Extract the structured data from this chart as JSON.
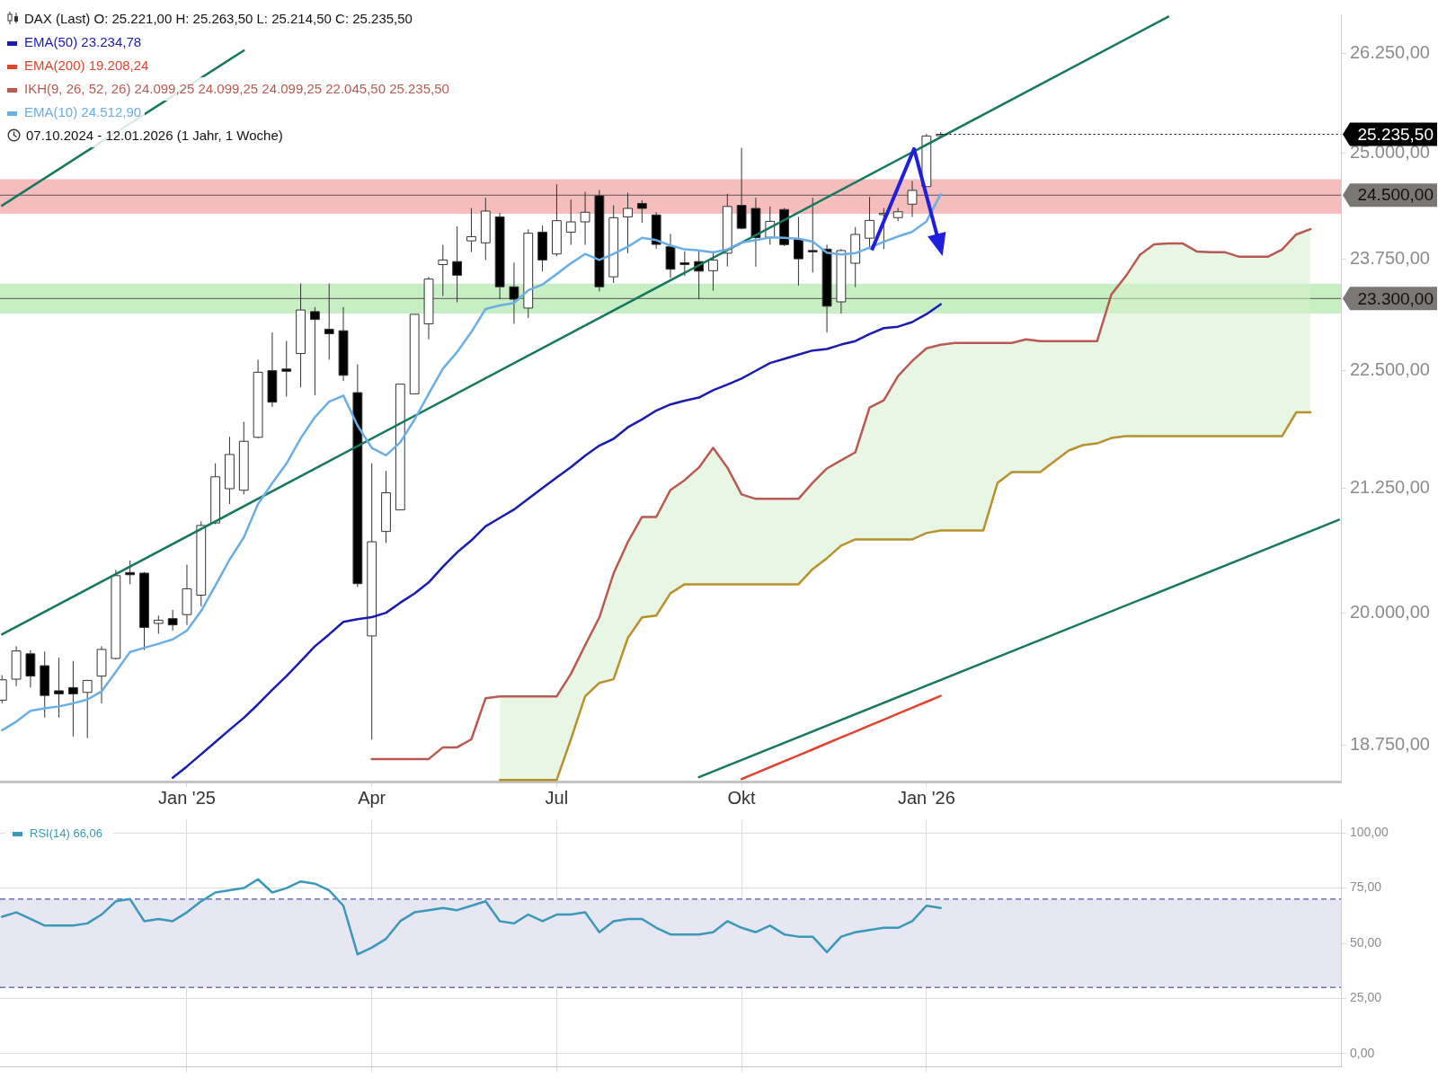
{
  "chart_data": [
    {
      "type": "candlestick",
      "title": "DAX (Last)  O: 25.221,00  H: 25.263,50  L: 25.214,50  C: 25.235,50",
      "subtitle": "07.10.2024 - 12.01.2026  (1 Jahr, 1 Woche)",
      "legend": "top left",
      "log": true,
      "x": [
        "2024-10-07",
        "2024-10-14",
        "2024-10-21",
        "2024-10-28",
        "2024-11-04",
        "2024-11-11",
        "2024-11-18",
        "2024-11-25",
        "2024-12-02",
        "2024-12-09",
        "2024-12-16",
        "2024-12-23",
        "2024-12-30",
        "2025-01-06",
        "2025-01-13",
        "2025-01-20",
        "2025-01-27",
        "2025-02-03",
        "2025-02-10",
        "2025-02-17",
        "2025-02-24",
        "2025-03-03",
        "2025-03-10",
        "2025-03-17",
        "2025-03-24",
        "2025-03-31",
        "2025-04-07",
        "2025-04-14",
        "2025-04-21",
        "2025-04-28",
        "2025-05-05",
        "2025-05-12",
        "2025-05-19",
        "2025-05-26",
        "2025-06-02",
        "2025-06-09",
        "2025-06-16",
        "2025-06-23",
        "2025-06-30",
        "2025-07-07",
        "2025-07-14",
        "2025-07-21",
        "2025-07-28",
        "2025-08-04",
        "2025-08-11",
        "2025-08-18",
        "2025-08-25",
        "2025-09-01",
        "2025-09-08",
        "2025-09-15",
        "2025-09-22",
        "2025-09-29",
        "2025-10-06",
        "2025-10-13",
        "2025-10-20",
        "2025-10-27",
        "2025-11-03",
        "2025-11-10",
        "2025-11-17",
        "2025-11-24",
        "2025-12-01",
        "2025-12-08",
        "2025-12-15",
        "2025-12-22",
        "2025-12-29",
        "2026-01-05",
        "2026-01-12"
      ],
      "ohlc": [
        [
          19168,
          19403,
          19139,
          19359
        ],
        [
          19365,
          19677,
          19300,
          19632
        ],
        [
          19605,
          19641,
          19286,
          19394
        ],
        [
          19492,
          19627,
          19007,
          19212
        ],
        [
          19256,
          19567,
          19007,
          19227
        ],
        [
          19286,
          19537,
          18833,
          19227
        ],
        [
          19241,
          19359,
          18818,
          19353
        ],
        [
          19394,
          19677,
          19139,
          19647
        ],
        [
          19561,
          20422,
          19551,
          20364
        ],
        [
          20395,
          20514,
          20280,
          20373
        ],
        [
          20389,
          20400,
          19641,
          19858
        ],
        [
          19897,
          19973,
          19797,
          19928
        ],
        [
          19943,
          20028,
          19827,
          19882
        ],
        [
          19982,
          20473,
          19882,
          20234
        ],
        [
          20172,
          20909,
          20064,
          20867
        ],
        [
          20893,
          21507,
          20880,
          21366
        ],
        [
          21243,
          21786,
          21085,
          21599
        ],
        [
          21227,
          21945,
          21184,
          21738
        ],
        [
          21780,
          22617,
          21770,
          22480
        ],
        [
          22497,
          22920,
          22104,
          22155
        ],
        [
          22515,
          22826,
          22216,
          22490
        ],
        [
          22686,
          23471,
          22316,
          23170
        ],
        [
          23152,
          23202,
          22230,
          23064
        ],
        [
          22955,
          23471,
          22617,
          22904
        ],
        [
          22938,
          23202,
          22384,
          22446
        ],
        [
          22258,
          22566,
          20254,
          20285
        ],
        [
          19776,
          21507,
          18804,
          20702
        ],
        [
          20806,
          21427,
          20690,
          21201
        ],
        [
          21025,
          22350,
          21025,
          22350
        ],
        [
          22245,
          23122,
          22245,
          23122
        ],
        [
          23015,
          23547,
          22842,
          23521
        ],
        [
          23687,
          23916,
          23327,
          23740
        ],
        [
          23722,
          24131,
          23257,
          23565
        ],
        [
          23962,
          24347,
          23832,
          24011
        ],
        [
          23939,
          24470,
          23740,
          24311
        ],
        [
          24243,
          24288,
          23292,
          23433
        ],
        [
          23433,
          23709,
          23015,
          23292
        ],
        [
          23192,
          24096,
          23080,
          24051
        ],
        [
          24064,
          24140,
          23608,
          23740
        ],
        [
          23810,
          24630,
          23784,
          24198
        ],
        [
          24064,
          24448,
          23916,
          24184
        ],
        [
          24184,
          24539,
          23916,
          24297
        ],
        [
          24493,
          24562,
          23380,
          23433
        ],
        [
          23547,
          24379,
          23477,
          24233
        ],
        [
          24243,
          24530,
          23819,
          24343
        ],
        [
          24402,
          24439,
          24175,
          24343
        ],
        [
          24266,
          24298,
          23872,
          23921
        ],
        [
          23894,
          24042,
          23533,
          23634
        ],
        [
          23709,
          23841,
          23556,
          23687
        ],
        [
          23722,
          23841,
          23292,
          23612
        ],
        [
          23617,
          23841,
          23389,
          23740
        ],
        [
          23819,
          24516,
          23665,
          24366
        ],
        [
          24379,
          25070,
          24096,
          24109
        ],
        [
          24343,
          24470,
          23663,
          24000
        ],
        [
          24003,
          24365,
          23918,
          24190
        ],
        [
          24330,
          24347,
          23900,
          23918
        ],
        [
          23979,
          24243,
          23446,
          23754
        ],
        [
          23850,
          24470,
          23597,
          23835
        ],
        [
          23866,
          23918,
          22917,
          23213
        ],
        [
          23262,
          23866,
          23131,
          23849
        ],
        [
          23703,
          24123,
          23429,
          24037
        ],
        [
          23993,
          24480,
          23866,
          24201
        ],
        [
          24270,
          24347,
          23866,
          24285
        ],
        [
          24234,
          24347,
          24190,
          24303
        ],
        [
          24393,
          24669,
          24243,
          24557
        ],
        [
          24602,
          25240,
          24600,
          25215
        ],
        [
          25221,
          25263.5,
          25214.5,
          25235.5
        ]
      ],
      "xlim": [
        "2024-10-06",
        "2026-07-28"
      ],
      "xticks": [
        {
          "value": "2025-01-06",
          "label": "Jan '25"
        },
        {
          "value": "2025-04-07",
          "label": "Apr"
        },
        {
          "value": "2025-07-07",
          "label": "Jul"
        },
        {
          "value": "2025-10-06",
          "label": "Okt"
        },
        {
          "value": "2026-01-05",
          "label": "Jan '26"
        }
      ],
      "ylim": [
        18425,
        26750
      ],
      "yticks": [
        {
          "value": 18750,
          "label": "18.750,00"
        },
        {
          "value": 20000,
          "label": "20.000,00"
        },
        {
          "value": 21250,
          "label": "21.250,00"
        },
        {
          "value": 22500,
          "label": "22.500,00"
        },
        {
          "value": 23750,
          "label": "23.750,00"
        },
        {
          "value": 25000,
          "label": "25.000,00"
        },
        {
          "value": 26250,
          "label": "26.250,00"
        }
      ],
      "ref_lines": [
        {
          "axis": "y",
          "value": 24500,
          "label": "24.500,00",
          "color": "#555555"
        },
        {
          "axis": "y",
          "value": 23300,
          "label": "23.300,00",
          "color": "#555555"
        }
      ],
      "bands": [
        {
          "axis": "y",
          "from": 24280,
          "to": 24690,
          "color": "#f6bdbd"
        },
        {
          "axis": "y",
          "from": 23130,
          "to": 23470,
          "color": "#c8efc4"
        }
      ],
      "annotations": [
        {
          "text": "25.235,50",
          "x": "2026-01-12",
          "y": 25235.5
        }
      ],
      "series": [
        {
          "type": "line",
          "name": "EMA(50)  23.234,78",
          "color": "#1b1bb0",
          "values": [
            null,
            null,
            null,
            null,
            null,
            null,
            null,
            null,
            null,
            null,
            null,
            null,
            18460,
            18561,
            18671,
            18782,
            18894,
            19004,
            19130,
            19265,
            19393,
            19533,
            19677,
            19791,
            19912,
            19937,
            19958,
            20000,
            20098,
            20188,
            20297,
            20452,
            20596,
            20716,
            20858,
            20944,
            21029,
            21139,
            21249,
            21360,
            21467,
            21587,
            21692,
            21764,
            21886,
            21971,
            22065,
            22131,
            22172,
            22205,
            22284,
            22346,
            22412,
            22496,
            22581,
            22626,
            22673,
            22719,
            22735,
            22784,
            22823,
            22901,
            22967,
            22983,
            23035,
            23124,
            23235
          ]
        },
        {
          "type": "line",
          "name": "EMA(200)  19.208,24",
          "color": "#e0442e",
          "values": [
            null,
            null,
            null,
            null,
            null,
            null,
            null,
            null,
            null,
            null,
            null,
            null,
            null,
            null,
            null,
            null,
            null,
            null,
            null,
            null,
            null,
            null,
            null,
            null,
            null,
            null,
            null,
            null,
            null,
            null,
            null,
            null,
            null,
            null,
            null,
            null,
            null,
            null,
            null,
            null,
            null,
            null,
            null,
            null,
            null,
            null,
            null,
            null,
            null,
            null,
            null,
            null,
            18447,
            18500,
            18554,
            18608,
            18661,
            18715,
            18770,
            18824,
            18878,
            18933,
            18988,
            19043,
            19098,
            19153,
            19208
          ]
        },
        {
          "type": "line",
          "name": "IKH(9, 26, 52, 26)  24.099,25  24.099,25  24.099,25  22.045,50  25.235,50",
          "color": "#b95a52",
          "x": [
            "2025-04-07",
            "2025-04-14",
            "2025-04-21",
            "2025-04-28",
            "2025-05-05",
            "2025-05-12",
            "2025-05-19",
            "2025-05-26",
            "2025-06-02",
            "2025-06-09",
            "2025-06-16",
            "2025-06-23",
            "2025-06-30",
            "2025-07-07",
            "2025-07-14",
            "2025-07-21",
            "2025-07-28",
            "2025-08-04",
            "2025-08-11",
            "2025-08-18",
            "2025-08-25",
            "2025-09-01",
            "2025-09-08",
            "2025-09-15",
            "2025-09-22",
            "2025-09-29",
            "2025-10-06",
            "2025-10-13",
            "2025-10-20",
            "2025-10-27",
            "2025-11-03",
            "2025-11-10",
            "2025-11-17",
            "2025-11-24",
            "2025-12-01",
            "2025-12-08",
            "2025-12-15",
            "2025-12-22",
            "2025-12-29",
            "2026-01-05",
            "2026-01-12",
            "2026-01-19",
            "2026-01-26",
            "2026-02-02",
            "2026-02-09",
            "2026-02-16",
            "2026-02-23",
            "2026-03-02",
            "2026-03-09",
            "2026-03-16",
            "2026-03-23",
            "2026-03-30",
            "2026-04-06",
            "2026-04-13",
            "2026-04-20",
            "2026-04-27",
            "2026-05-04",
            "2026-05-11",
            "2026-05-18",
            "2026-05-25",
            "2026-06-01",
            "2026-06-08",
            "2026-06-15",
            "2026-06-22",
            "2026-06-29",
            "2026-07-06",
            "2026-07-13"
          ],
          "values": [
            18628,
            18628,
            18628,
            18628,
            18628,
            18734,
            18734,
            18807,
            19187,
            19204,
            19204,
            19204,
            19204,
            19204,
            19415,
            19687,
            19955,
            20386,
            20699,
            20953,
            20953,
            21230,
            21332,
            21463,
            21669,
            21463,
            21184,
            21138,
            21138,
            21138,
            21138,
            21304,
            21453,
            21538,
            21622,
            22098,
            22175,
            22438,
            22604,
            22743,
            22783,
            22803,
            22803,
            22803,
            22803,
            22803,
            22842,
            22823,
            22823,
            22823,
            22823,
            22823,
            23345,
            23550,
            23798,
            23922,
            23933,
            23933,
            23839,
            23829,
            23829,
            23777,
            23777,
            23777,
            23860,
            24037,
            24099
          ],
          "upper": [
            null,
            null,
            null,
            null,
            null,
            null,
            null,
            null,
            null,
            19204,
            19204,
            19204,
            19204,
            19204,
            19415,
            19687,
            19955,
            20386,
            20699,
            20953,
            20953,
            21230,
            21332,
            21463,
            21669,
            21463,
            21184,
            21138,
            21138,
            21138,
            21138,
            21304,
            21453,
            21538,
            21622,
            22098,
            22175,
            22438,
            22604,
            22743,
            22783,
            22803,
            22803,
            22803,
            22803,
            22803,
            22842,
            22823,
            22823,
            22823,
            22823,
            22823,
            23345,
            23550,
            23798,
            23922,
            23933,
            23933,
            23839,
            23829,
            23829,
            23777,
            23777,
            23777,
            23860,
            24037,
            24099
          ],
          "lower": [
            null,
            null,
            null,
            null,
            null,
            null,
            null,
            null,
            null,
            18440,
            18440,
            18440,
            18440,
            18440,
            18807,
            19204,
            19330,
            19364,
            19756,
            19955,
            19973,
            20191,
            20279,
            20279,
            20279,
            20279,
            20279,
            20279,
            20279,
            20279,
            20279,
            20430,
            20537,
            20663,
            20726,
            20726,
            20726,
            20726,
            20726,
            20790,
            20817,
            20817,
            20817,
            20817,
            21304,
            21416,
            21416,
            21416,
            21528,
            21641,
            21698,
            21716,
            21773,
            21792,
            21792,
            21792,
            21792,
            21792,
            21792,
            21792,
            21792,
            21792,
            21792,
            21792,
            21792,
            22046,
            22046
          ]
        },
        {
          "type": "line",
          "name": "EMA(10)  24.512,90",
          "color": "#6aaee6",
          "values": [
            18890,
            18969,
            19069,
            19092,
            19110,
            19139,
            19174,
            19250,
            19433,
            19623,
            19662,
            19701,
            19743,
            19827,
            20018,
            20265,
            20523,
            20746,
            21085,
            21301,
            21504,
            21770,
            21995,
            22160,
            22226,
            21905,
            21668,
            21590,
            21727,
            21967,
            22245,
            22519,
            22702,
            22924,
            23182,
            23222,
            23250,
            23393,
            23459,
            23578,
            23702,
            23810,
            23740,
            23810,
            23894,
            23997,
            23970,
            23908,
            23863,
            23850,
            23827,
            23863,
            23943,
            23970,
            24003,
            23996,
            23986,
            23952,
            23825,
            23805,
            23819,
            23884,
            23952,
            24013,
            24068,
            24190,
            24513
          ]
        },
        {
          "type": "line",
          "color": "#b8902c",
          "x": [
            "2025-06-09",
            "2025-06-16",
            "2025-06-23",
            "2025-06-30",
            "2025-07-07",
            "2025-07-14",
            "2025-07-21",
            "2025-07-28",
            "2025-08-04",
            "2025-08-11",
            "2025-08-18",
            "2025-08-25",
            "2025-09-01",
            "2025-09-08",
            "2025-09-15",
            "2025-09-22",
            "2025-09-29",
            "2025-10-06",
            "2025-10-13",
            "2025-10-20",
            "2025-10-27",
            "2025-11-03",
            "2025-11-10",
            "2025-11-17",
            "2025-11-24",
            "2025-12-01",
            "2025-12-08",
            "2025-12-15",
            "2025-12-22",
            "2025-12-29",
            "2026-01-05",
            "2026-01-12",
            "2026-01-19",
            "2026-01-26",
            "2026-02-02",
            "2026-02-09",
            "2026-02-16",
            "2026-02-23",
            "2026-03-02",
            "2026-03-09",
            "2026-03-16",
            "2026-03-23",
            "2026-03-30",
            "2026-04-06",
            "2026-04-13",
            "2026-04-20",
            "2026-04-27",
            "2026-05-04",
            "2026-05-11",
            "2026-05-18",
            "2026-05-25",
            "2026-06-01",
            "2026-06-08",
            "2026-06-15",
            "2026-06-22",
            "2026-06-29",
            "2026-07-06",
            "2026-07-13"
          ],
          "values": [
            18440,
            18440,
            18440,
            18440,
            18440,
            18807,
            19204,
            19330,
            19364,
            19756,
            19955,
            19973,
            20191,
            20279,
            20279,
            20279,
            20279,
            20279,
            20279,
            20279,
            20279,
            20279,
            20430,
            20537,
            20663,
            20726,
            20726,
            20726,
            20726,
            20726,
            20790,
            20817,
            20817,
            20817,
            20817,
            21304,
            21416,
            21416,
            21416,
            21528,
            21641,
            21698,
            21716,
            21773,
            21792,
            21792,
            21792,
            21792,
            21792,
            21792,
            21792,
            21792,
            21792,
            21792,
            21792,
            21792,
            22046,
            22046
          ]
        },
        {
          "type": "line",
          "color": "#17785f",
          "x": [
            "2024-10-07",
            "2026-05-04"
          ],
          "values": [
            19791,
            26720
          ]
        },
        {
          "type": "line",
          "color": "#17785f",
          "x": [
            "2024-10-07",
            "2025-02-03"
          ],
          "values": [
            24376,
            26284
          ]
        },
        {
          "type": "line",
          "color": "#17785f",
          "x": [
            "2025-09-15",
            "2026-07-27"
          ],
          "values": [
            18464,
            20924
          ]
        }
      ]
    },
    {
      "type": "line",
      "legend": "top left",
      "grid": true,
      "tick_labels": "y",
      "x": [
        "2024-10-07",
        "2024-10-14",
        "2024-10-21",
        "2024-10-28",
        "2024-11-04",
        "2024-11-11",
        "2024-11-18",
        "2024-11-25",
        "2024-12-02",
        "2024-12-09",
        "2024-12-16",
        "2024-12-23",
        "2024-12-30",
        "2025-01-06",
        "2025-01-13",
        "2025-01-20",
        "2025-01-27",
        "2025-02-03",
        "2025-02-10",
        "2025-02-17",
        "2025-02-24",
        "2025-03-03",
        "2025-03-10",
        "2025-03-17",
        "2025-03-24",
        "2025-03-31",
        "2025-04-07",
        "2025-04-14",
        "2025-04-21",
        "2025-04-28",
        "2025-05-05",
        "2025-05-12",
        "2025-05-19",
        "2025-05-26",
        "2025-06-02",
        "2025-06-09",
        "2025-06-16",
        "2025-06-23",
        "2025-06-30",
        "2025-07-07",
        "2025-07-14",
        "2025-07-21",
        "2025-07-28",
        "2025-08-04",
        "2025-08-11",
        "2025-08-18",
        "2025-08-25",
        "2025-09-01",
        "2025-09-08",
        "2025-09-15",
        "2025-09-22",
        "2025-09-29",
        "2025-10-06",
        "2025-10-13",
        "2025-10-20",
        "2025-10-27",
        "2025-11-03",
        "2025-11-10",
        "2025-11-17",
        "2025-11-24",
        "2025-12-01",
        "2025-12-08",
        "2025-12-15",
        "2025-12-22",
        "2025-12-29",
        "2026-01-05",
        "2026-01-12"
      ],
      "xlim": [
        "2024-10-06",
        "2026-07-28"
      ],
      "xticks": [
        {
          "value": "2025-01-06",
          "label": null
        },
        {
          "value": "2025-04-07",
          "label": null
        },
        {
          "value": "2025-07-07",
          "label": null
        },
        {
          "value": "2025-10-06",
          "label": null
        },
        {
          "value": "2026-01-05",
          "label": null
        }
      ],
      "ylim": [
        -6,
        106
      ],
      "yticks": [
        {
          "value": 0,
          "label": "0,00"
        },
        {
          "value": 25,
          "label": "25,00"
        },
        {
          "value": 50,
          "label": "50,00"
        },
        {
          "value": 75,
          "label": "75,00"
        },
        {
          "value": 100,
          "label": "100,00"
        }
      ],
      "bands": [
        {
          "axis": "y",
          "from": 30,
          "to": 70,
          "color": "#e6e7f3"
        }
      ],
      "ref_lines": [
        {
          "axis": "y",
          "value": 70,
          "color": "#2e2e8c",
          "line_style": "dashed"
        },
        {
          "axis": "y",
          "value": 30,
          "color": "#2e2e8c",
          "line_style": "dashed"
        }
      ],
      "series": [
        {
          "type": "line",
          "name": "RSI(14)  66,06",
          "color": "#3a98b9",
          "values": [
            62,
            64,
            61,
            58,
            58,
            58,
            59,
            63,
            69,
            70,
            60,
            61,
            60,
            64,
            69,
            73,
            74,
            75,
            79,
            73,
            75,
            78,
            77,
            74,
            67,
            45,
            48,
            52,
            60,
            64,
            65,
            66,
            65,
            67,
            69,
            60,
            59,
            63,
            60,
            63,
            63,
            64,
            55,
            60,
            61,
            61,
            57,
            54,
            54,
            54,
            55,
            60,
            57,
            55,
            58,
            54,
            53,
            53,
            46,
            53,
            55,
            56,
            57,
            57,
            60,
            67,
            66
          ]
        }
      ]
    }
  ]
}
